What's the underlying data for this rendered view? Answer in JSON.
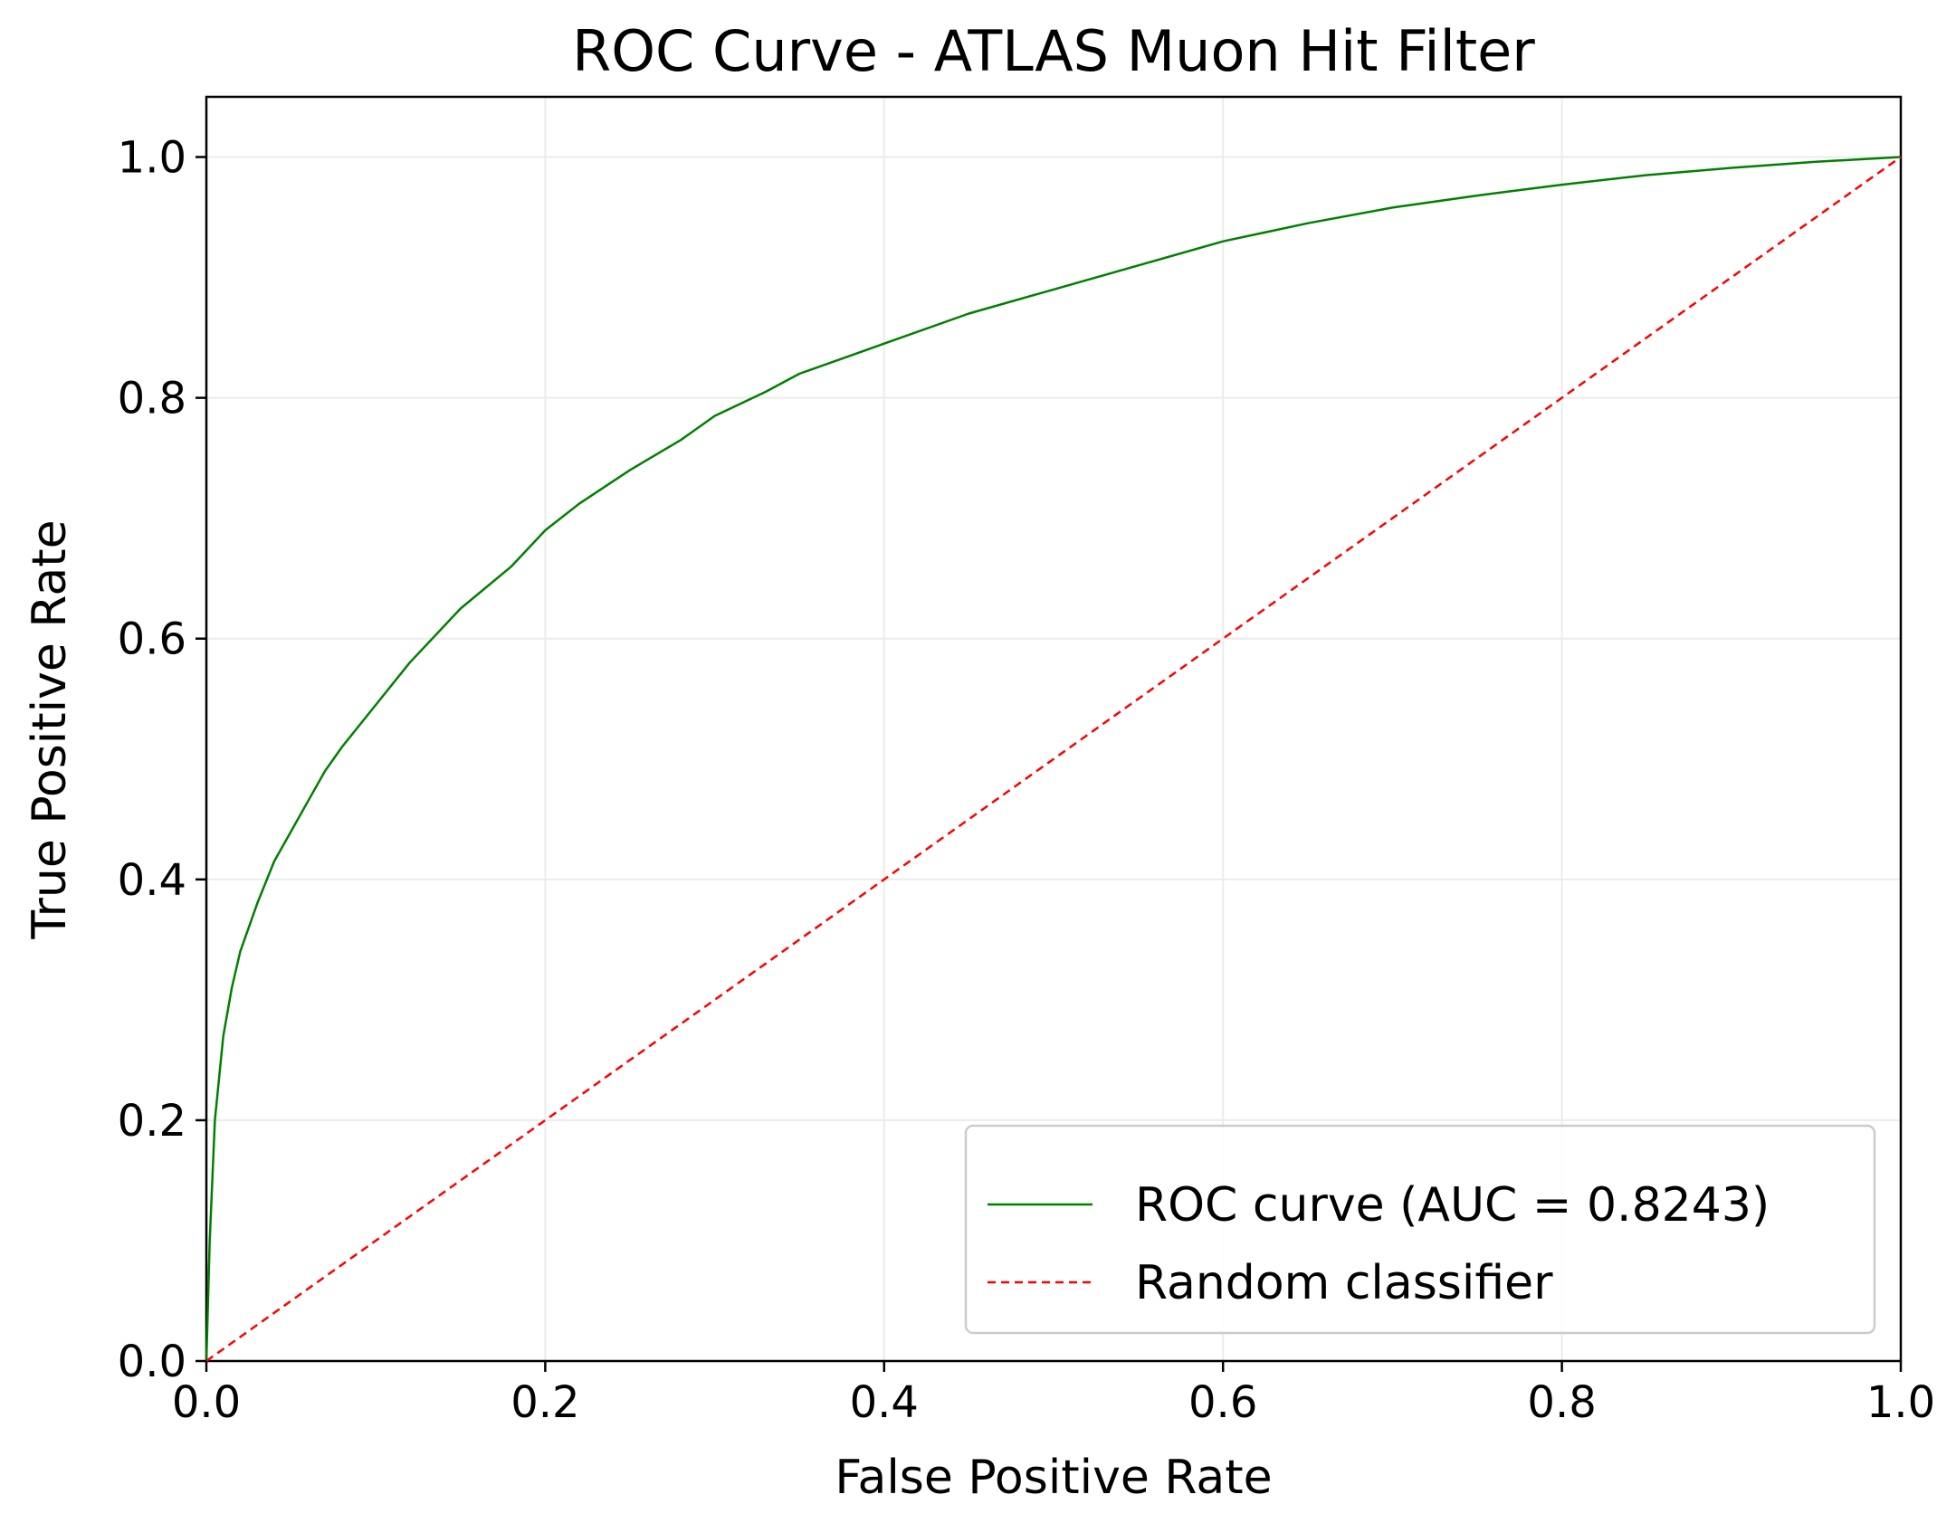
{
  "chart_data": {
    "type": "line",
    "title": "ROC Curve - ATLAS Muon Hit Filter",
    "xlabel": "False Positive Rate",
    "ylabel": "True Positive Rate",
    "xlim": [
      0.0,
      1.0
    ],
    "ylim": [
      0.0,
      1.05
    ],
    "x_ticks": [
      "0.0",
      "0.2",
      "0.4",
      "0.6",
      "0.8",
      "1.0"
    ],
    "y_ticks": [
      "0.0",
      "0.2",
      "0.4",
      "0.6",
      "0.8",
      "1.0"
    ],
    "grid": true,
    "legend_position": "lower-right",
    "series": [
      {
        "name": "ROC curve (AUC = 0.8243)",
        "color": "#008000",
        "style": "solid",
        "x": [
          0.0,
          0.002,
          0.005,
          0.01,
          0.015,
          0.02,
          0.03,
          0.04,
          0.05,
          0.06,
          0.07,
          0.08,
          0.1,
          0.12,
          0.15,
          0.18,
          0.2,
          0.22,
          0.25,
          0.28,
          0.3,
          0.33,
          0.35,
          0.38,
          0.4,
          0.45,
          0.5,
          0.55,
          0.6,
          0.65,
          0.7,
          0.75,
          0.8,
          0.85,
          0.9,
          0.95,
          1.0
        ],
        "y": [
          0.0,
          0.1,
          0.2,
          0.27,
          0.31,
          0.34,
          0.38,
          0.415,
          0.44,
          0.465,
          0.49,
          0.51,
          0.545,
          0.58,
          0.625,
          0.66,
          0.69,
          0.712,
          0.74,
          0.765,
          0.785,
          0.805,
          0.82,
          0.835,
          0.845,
          0.87,
          0.89,
          0.91,
          0.93,
          0.945,
          0.958,
          0.968,
          0.977,
          0.985,
          0.991,
          0.996,
          1.0
        ]
      },
      {
        "name": "Random classifier",
        "color": "#ff0000",
        "style": "dashed",
        "x": [
          0.0,
          1.0
        ],
        "y": [
          0.0,
          1.0
        ]
      }
    ]
  }
}
